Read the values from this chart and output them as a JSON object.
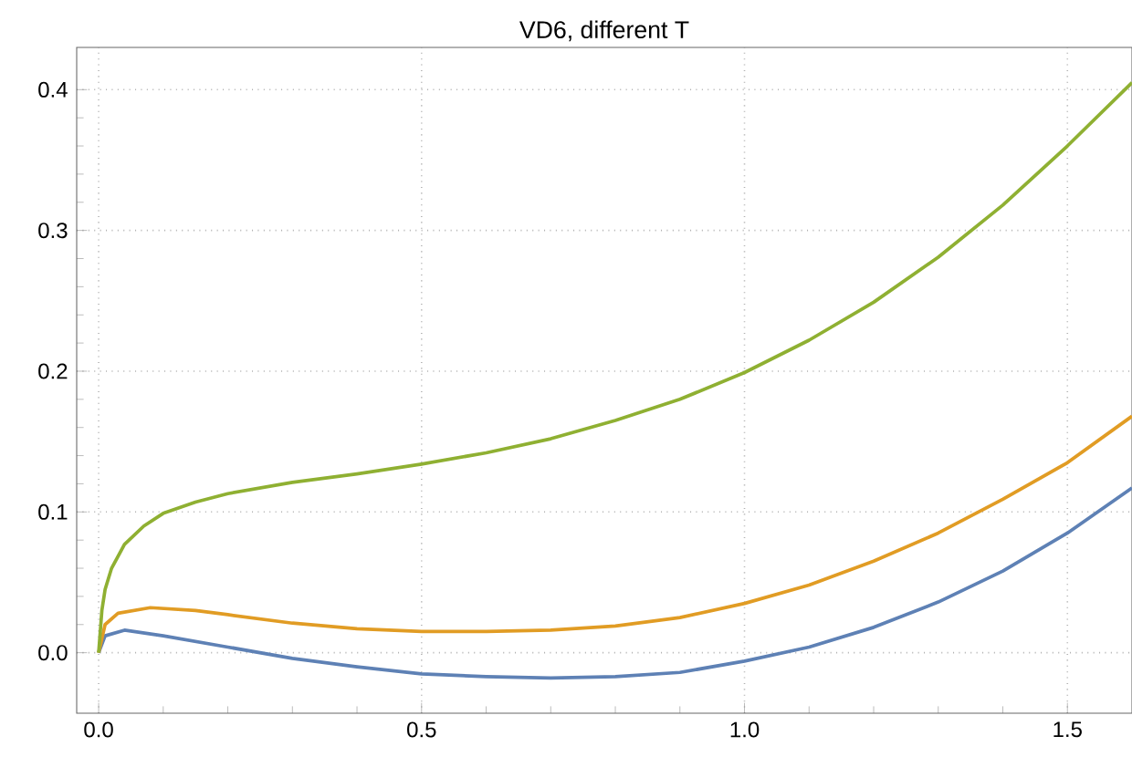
{
  "chart_data": {
    "type": "line",
    "title": "VD6, different T",
    "xlim": [
      -0.034,
      1.6
    ],
    "ylim": [
      -0.043,
      0.43
    ],
    "xticks": [
      {
        "value": 0,
        "label": "0.0"
      },
      0.5,
      {
        "value": 1,
        "label": "1.0"
      },
      1.5
    ],
    "yticks": [
      {
        "value": 0,
        "label": "0.0"
      },
      0.1,
      0.2,
      0.3,
      0.4
    ],
    "grid": true,
    "line_style": "solid",
    "marker": "none",
    "series": [
      {
        "color": "#5e81b5",
        "x": [
          0,
          0.01,
          0.04,
          0.1,
          0.2,
          0.3,
          0.4,
          0.5,
          0.6,
          0.7,
          0.8,
          0.9,
          1.0,
          1.1,
          1.2,
          1.3,
          1.4,
          1.5,
          1.6
        ],
        "values": [
          0,
          0.012,
          0.016,
          0.012,
          0.004,
          -0.004,
          -0.01,
          -0.015,
          -0.017,
          -0.018,
          -0.017,
          -0.014,
          -0.006,
          0.004,
          0.018,
          0.036,
          0.058,
          0.085,
          0.117
        ]
      },
      {
        "color": "#e19c24",
        "x": [
          0,
          0.01,
          0.03,
          0.08,
          0.15,
          0.2,
          0.3,
          0.4,
          0.5,
          0.6,
          0.7,
          0.8,
          0.9,
          1.0,
          1.1,
          1.2,
          1.3,
          1.4,
          1.5,
          1.6
        ],
        "values": [
          0,
          0.02,
          0.028,
          0.032,
          0.03,
          0.027,
          0.021,
          0.017,
          0.015,
          0.015,
          0.016,
          0.019,
          0.025,
          0.035,
          0.048,
          0.065,
          0.085,
          0.109,
          0.135,
          0.168
        ]
      },
      {
        "color": "#8fb032",
        "x": [
          0,
          0.005,
          0.01,
          0.02,
          0.04,
          0.07,
          0.1,
          0.15,
          0.2,
          0.3,
          0.4,
          0.5,
          0.6,
          0.7,
          0.8,
          0.9,
          1.0,
          1.1,
          1.2,
          1.3,
          1.4,
          1.5,
          1.6
        ],
        "values": [
          0,
          0.03,
          0.045,
          0.06,
          0.077,
          0.09,
          0.099,
          0.107,
          0.113,
          0.121,
          0.127,
          0.134,
          0.142,
          0.152,
          0.165,
          0.18,
          0.199,
          0.222,
          0.249,
          0.281,
          0.318,
          0.36,
          0.405
        ]
      }
    ]
  }
}
